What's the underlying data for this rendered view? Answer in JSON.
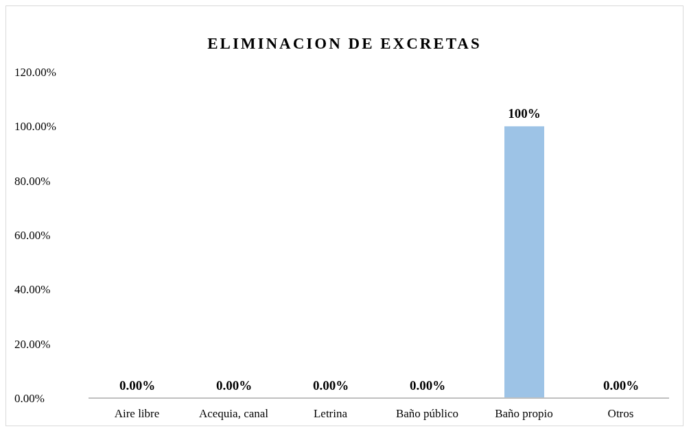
{
  "chart_data": {
    "type": "bar",
    "title": "ELIMINACION DE EXCRETAS",
    "categories": [
      "Aire libre",
      "Acequia, canal",
      "Letrina",
      "Baño público",
      "Baño propio",
      "Otros"
    ],
    "values": [
      0,
      0,
      0,
      0,
      100,
      0
    ],
    "value_labels": [
      "0.00%",
      "0.00%",
      "0.00%",
      "0.00%",
      "100%",
      "0.00%"
    ],
    "color": "#9dc3e6",
    "ylim": [
      0,
      120
    ],
    "yticks": [
      {
        "value": 0,
        "label": "0.00%"
      },
      {
        "value": 20,
        "label": "20.00%"
      },
      {
        "value": 40,
        "label": "40.00%"
      },
      {
        "value": 60,
        "label": "60.00%"
      },
      {
        "value": 80,
        "label": "80.00%"
      },
      {
        "value": 100,
        "label": "100.00%"
      },
      {
        "value": 120,
        "label": "120.00%"
      }
    ],
    "grid": false,
    "legend": false
  }
}
